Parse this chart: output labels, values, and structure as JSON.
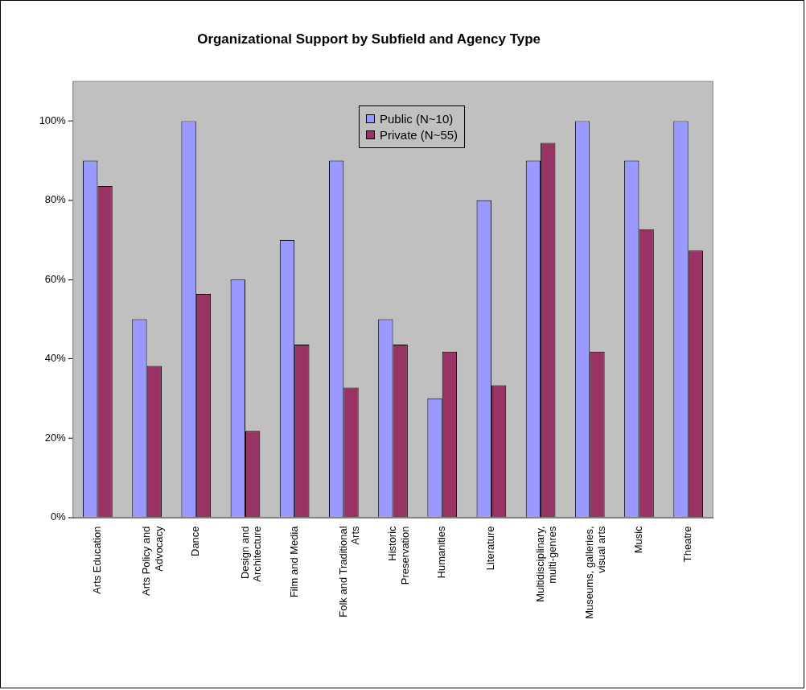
{
  "chart_data": {
    "type": "bar",
    "title": "Organizational Support by Subfield and Agency Type",
    "categories": [
      "Arts Education",
      "Arts Policy and Advocacy",
      "Dance",
      "Design and Architecture",
      "Film and Media",
      "Folk and Traditional Arts",
      "Historic Preservation",
      "Humanities",
      "Literature",
      "Multidisciplinary, multi-genres",
      "Museums, galleries, visual arts",
      "Music",
      "Theatre"
    ],
    "series": [
      {
        "name": "Public (N~10)",
        "color": "#9999ff",
        "values": [
          90,
          50,
          100,
          60,
          70,
          90,
          50,
          30,
          80,
          90,
          100,
          90,
          100
        ]
      },
      {
        "name": "Private (N~55)",
        "color": "#993366",
        "values": [
          83.6,
          38.2,
          56.4,
          21.8,
          43.6,
          32.7,
          43.6,
          41.8,
          33.3,
          94.5,
          41.8,
          72.7,
          67.3
        ]
      }
    ],
    "ylim": [
      0,
      110
    ],
    "yticks": [
      {
        "value": 0,
        "label": "0%"
      },
      {
        "value": 20,
        "label": "20%"
      },
      {
        "value": 40,
        "label": "40%"
      },
      {
        "value": 60,
        "label": "60%"
      },
      {
        "value": 80,
        "label": "80%"
      },
      {
        "value": 100,
        "label": "100%"
      }
    ],
    "grid": false,
    "legend": "top"
  }
}
